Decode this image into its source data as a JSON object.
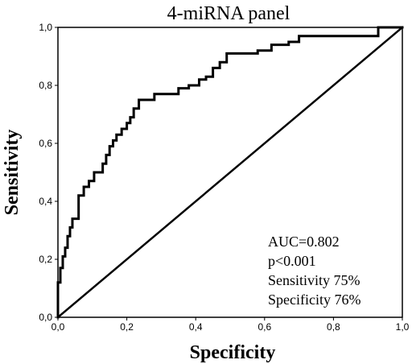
{
  "chart_data": {
    "type": "line",
    "title": "4-miRNA panel",
    "xlabel": "Specificity",
    "ylabel": "Sensitivity",
    "xlim": [
      0,
      1
    ],
    "ylim": [
      0,
      1
    ],
    "x_ticks": [
      "0,0",
      "0,2",
      "0,4",
      "0,6",
      "0,8",
      "1,0"
    ],
    "y_ticks": [
      "0,0",
      "0,2",
      "0,4",
      "0,6",
      "0,8",
      "1,0"
    ],
    "grid": false,
    "legend": "none",
    "annotations": [
      "AUC=0.802",
      "p<0.001",
      "Sensitivity 75%",
      "Specificity 76%"
    ],
    "series": [
      {
        "style": "step",
        "color": "#000000",
        "points": [
          [
            0.0,
            0.0
          ],
          [
            0.0,
            0.12
          ],
          [
            0.007,
            0.12
          ],
          [
            0.007,
            0.17
          ],
          [
            0.014,
            0.17
          ],
          [
            0.014,
            0.21
          ],
          [
            0.021,
            0.21
          ],
          [
            0.021,
            0.24
          ],
          [
            0.028,
            0.24
          ],
          [
            0.028,
            0.28
          ],
          [
            0.035,
            0.28
          ],
          [
            0.035,
            0.31
          ],
          [
            0.042,
            0.31
          ],
          [
            0.042,
            0.34
          ],
          [
            0.06,
            0.34
          ],
          [
            0.06,
            0.42
          ],
          [
            0.075,
            0.42
          ],
          [
            0.075,
            0.45
          ],
          [
            0.09,
            0.45
          ],
          [
            0.09,
            0.47
          ],
          [
            0.105,
            0.47
          ],
          [
            0.105,
            0.5
          ],
          [
            0.13,
            0.5
          ],
          [
            0.13,
            0.53
          ],
          [
            0.14,
            0.53
          ],
          [
            0.14,
            0.56
          ],
          [
            0.15,
            0.56
          ],
          [
            0.15,
            0.59
          ],
          [
            0.16,
            0.59
          ],
          [
            0.16,
            0.61
          ],
          [
            0.17,
            0.61
          ],
          [
            0.17,
            0.63
          ],
          [
            0.185,
            0.63
          ],
          [
            0.185,
            0.65
          ],
          [
            0.2,
            0.65
          ],
          [
            0.2,
            0.67
          ],
          [
            0.21,
            0.67
          ],
          [
            0.21,
            0.69
          ],
          [
            0.22,
            0.69
          ],
          [
            0.22,
            0.72
          ],
          [
            0.235,
            0.72
          ],
          [
            0.235,
            0.75
          ],
          [
            0.28,
            0.75
          ],
          [
            0.28,
            0.77
          ],
          [
            0.35,
            0.77
          ],
          [
            0.35,
            0.79
          ],
          [
            0.38,
            0.79
          ],
          [
            0.38,
            0.8
          ],
          [
            0.41,
            0.8
          ],
          [
            0.41,
            0.82
          ],
          [
            0.43,
            0.82
          ],
          [
            0.43,
            0.83
          ],
          [
            0.45,
            0.83
          ],
          [
            0.45,
            0.86
          ],
          [
            0.47,
            0.86
          ],
          [
            0.47,
            0.88
          ],
          [
            0.49,
            0.88
          ],
          [
            0.49,
            0.91
          ],
          [
            0.58,
            0.91
          ],
          [
            0.58,
            0.92
          ],
          [
            0.62,
            0.92
          ],
          [
            0.62,
            0.94
          ],
          [
            0.67,
            0.94
          ],
          [
            0.67,
            0.95
          ],
          [
            0.7,
            0.95
          ],
          [
            0.7,
            0.97
          ],
          [
            0.93,
            0.97
          ],
          [
            0.93,
            1.0
          ],
          [
            1.0,
            1.0
          ]
        ]
      },
      {
        "style": "line",
        "color": "#000000",
        "points": [
          [
            0,
            0
          ],
          [
            1,
            1
          ]
        ]
      }
    ]
  }
}
